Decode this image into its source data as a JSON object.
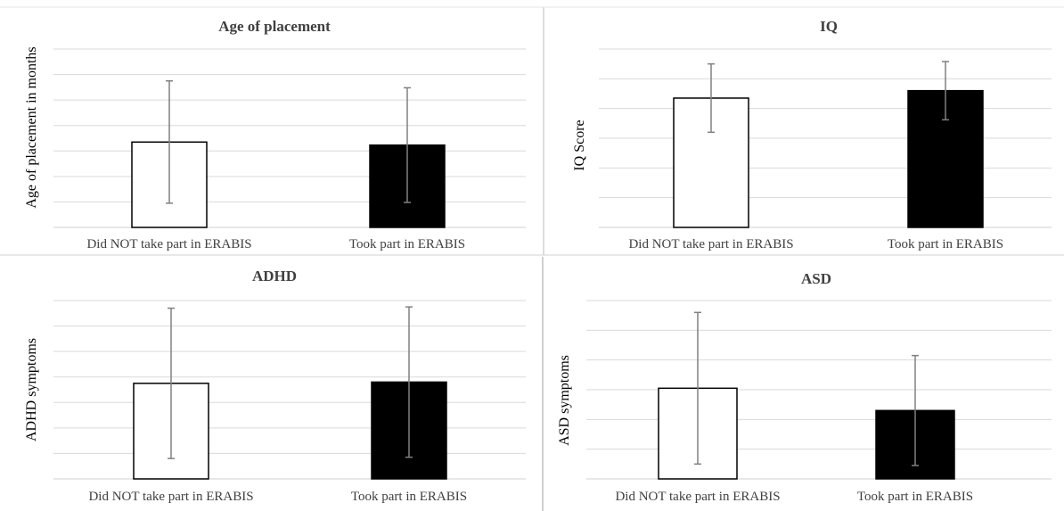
{
  "colors": {
    "group_not": "#ffffff",
    "group_took": "#000000",
    "bar_outline": "#000000",
    "errorbar": "#808080",
    "gridline": "#d9d9d9",
    "divider": "#d0d0d0"
  },
  "chart_data": [
    {
      "type": "bar",
      "title": "Age of placement",
      "ylabel": "Age of placement in months",
      "xlabel": "",
      "categories": [
        "Did NOT take part in ERABIS",
        "Took part in ERABIS"
      ],
      "values": [
        3.35,
        3.23
      ],
      "error": [
        2.4,
        2.25
      ],
      "ylim": [
        0,
        7
      ],
      "gridlines": 7,
      "grid": true,
      "legend": "none"
    },
    {
      "type": "bar",
      "title": "IQ",
      "ylabel": "IQ Score",
      "xlabel": "",
      "categories": [
        "Did NOT take part in ERABIS",
        "Took part in ERABIS"
      ],
      "values": [
        4.35,
        4.6
      ],
      "error": [
        1.15,
        0.98
      ],
      "ylim": [
        0,
        6
      ],
      "gridlines": 6,
      "grid": true,
      "legend": "none"
    },
    {
      "type": "bar",
      "title": "ADHD",
      "ylabel": "ADHD symptoms",
      "xlabel": "",
      "categories": [
        "Did NOT take part in ERABIS",
        "Took part in ERABIS"
      ],
      "values": [
        3.75,
        3.8
      ],
      "error": [
        2.95,
        2.95
      ],
      "ylim": [
        0,
        7
      ],
      "gridlines": 7,
      "grid": true,
      "legend": "none"
    },
    {
      "type": "bar",
      "title": "ASD",
      "ylabel": "ASD symptoms",
      "xlabel": "",
      "categories": [
        "Did NOT take part in ERABIS",
        "Took part in ERABIS"
      ],
      "values": [
        3.05,
        2.3
      ],
      "error": [
        2.55,
        1.85
      ],
      "ylim": [
        0,
        6
      ],
      "gridlines": 6,
      "grid": true,
      "legend": "none"
    }
  ]
}
